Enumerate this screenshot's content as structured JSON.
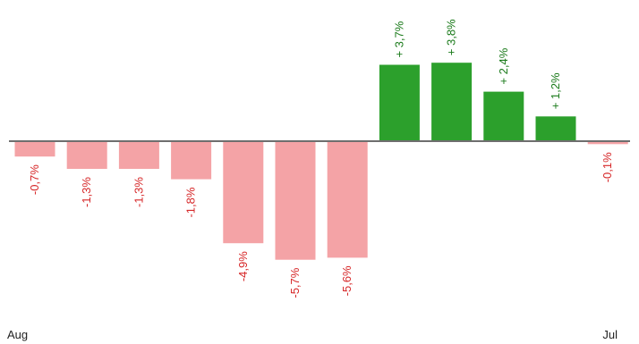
{
  "chart_data": {
    "type": "bar",
    "categories": [
      "",
      "",
      "",
      "",
      "",
      "",
      "",
      "",
      "",
      "",
      "",
      ""
    ],
    "values": [
      -0.7,
      -1.3,
      -1.3,
      -1.8,
      -4.9,
      -5.7,
      -5.6,
      3.7,
      3.8,
      2.4,
      1.2,
      -0.1
    ],
    "data_labels": [
      "-0,7%",
      "-1,3%",
      "-1,3%",
      "-1,8%",
      "-4,9%",
      "-5,7%",
      "-5,6%",
      "+ 3,7%",
      "+ 3,8%",
      "+ 2,4%",
      "+ 1,2%",
      "-0,1%"
    ],
    "x_start_label": "Aug",
    "x_end_label": "Jul",
    "title": "",
    "xlabel": "",
    "ylabel": "",
    "ylim": [
      -6.0,
      6.5
    ],
    "grid": false,
    "legend": "none",
    "colors": {
      "positive_bar": "#2ca02c",
      "negative_bar": "#f4a3a6",
      "positive_label": "#1a7a1a",
      "negative_label": "#d62728",
      "baseline": "#6e6e6e"
    }
  }
}
